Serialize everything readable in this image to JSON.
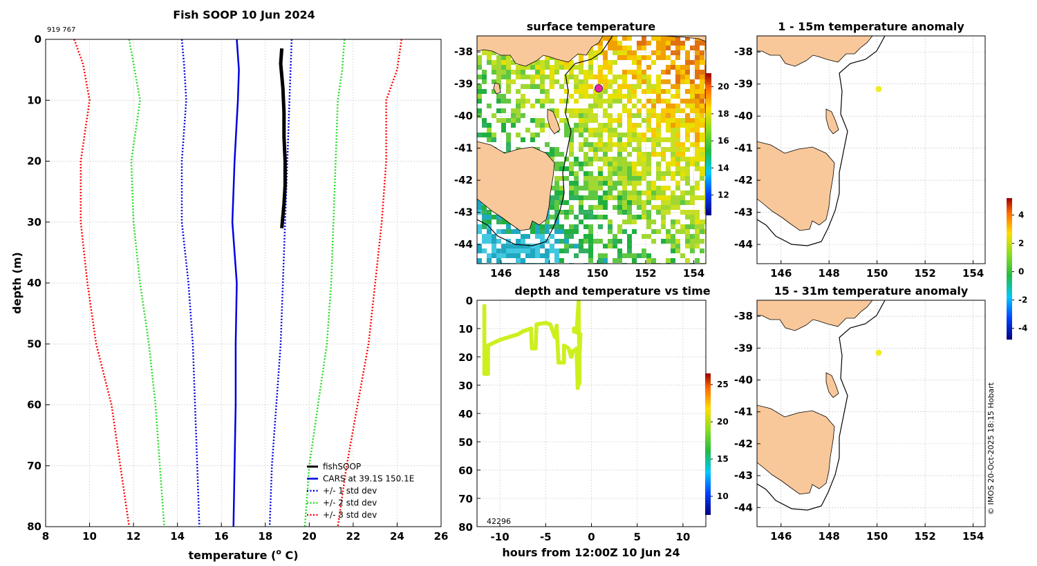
{
  "profile": {
    "title": "Fish SOOP 10 Jun 2024",
    "id_label": "919 767",
    "xlabel_main": "temperature (",
    "xlabel_sup": "o",
    "xlabel_end": " C)",
    "ylabel": "depth (m)",
    "xlim": [
      8,
      26
    ],
    "ylim": [
      0,
      80
    ],
    "xticks": [
      8,
      10,
      12,
      14,
      16,
      18,
      20,
      22,
      24,
      26
    ],
    "yticks": [
      0,
      10,
      20,
      30,
      40,
      50,
      60,
      70,
      80
    ],
    "colors": {
      "fishSOOP": "#000000",
      "cars": "#0000e0",
      "std1": "#0000e0",
      "std2": "#22dd22",
      "std3": "#ff0000"
    },
    "series": [
      {
        "key": "std3_low",
        "style": "std3",
        "points": [
          [
            9.3,
            0
          ],
          [
            9.7,
            4
          ],
          [
            10.0,
            10
          ],
          [
            9.6,
            20
          ],
          [
            9.6,
            30
          ],
          [
            9.9,
            40
          ],
          [
            10.3,
            50
          ],
          [
            11.0,
            60
          ],
          [
            11.4,
            70
          ],
          [
            11.8,
            80
          ]
        ]
      },
      {
        "key": "std2_low",
        "style": "std2",
        "points": [
          [
            11.8,
            0
          ],
          [
            12.0,
            4
          ],
          [
            12.3,
            10
          ],
          [
            11.9,
            20
          ],
          [
            12.0,
            30
          ],
          [
            12.3,
            40
          ],
          [
            12.7,
            50
          ],
          [
            13.0,
            60
          ],
          [
            13.2,
            70
          ],
          [
            13.4,
            80
          ]
        ]
      },
      {
        "key": "std1_low",
        "style": "std1",
        "points": [
          [
            14.2,
            0
          ],
          [
            14.3,
            4
          ],
          [
            14.4,
            10
          ],
          [
            14.2,
            20
          ],
          [
            14.2,
            30
          ],
          [
            14.5,
            40
          ],
          [
            14.7,
            50
          ],
          [
            14.8,
            60
          ],
          [
            14.9,
            70
          ],
          [
            15.0,
            80
          ]
        ]
      },
      {
        "key": "cars_mean",
        "style": "cars",
        "points": [
          [
            16.7,
            0
          ],
          [
            16.8,
            5
          ],
          [
            16.75,
            10
          ],
          [
            16.6,
            20
          ],
          [
            16.5,
            30
          ],
          [
            16.7,
            40
          ],
          [
            16.65,
            50
          ],
          [
            16.65,
            60
          ],
          [
            16.6,
            70
          ],
          [
            16.55,
            80
          ]
        ]
      },
      {
        "key": "std1_high",
        "style": "std1",
        "points": [
          [
            19.2,
            0
          ],
          [
            19.15,
            5
          ],
          [
            19.1,
            10
          ],
          [
            19.0,
            20
          ],
          [
            18.9,
            30
          ],
          [
            18.8,
            40
          ],
          [
            18.7,
            50
          ],
          [
            18.5,
            60
          ],
          [
            18.3,
            70
          ],
          [
            18.2,
            80
          ]
        ]
      },
      {
        "key": "std2_high",
        "style": "std2",
        "points": [
          [
            21.6,
            0
          ],
          [
            21.5,
            5
          ],
          [
            21.3,
            10
          ],
          [
            21.2,
            20
          ],
          [
            21.1,
            30
          ],
          [
            21.0,
            40
          ],
          [
            20.8,
            50
          ],
          [
            20.4,
            60
          ],
          [
            20.0,
            70
          ],
          [
            19.8,
            80
          ]
        ]
      },
      {
        "key": "std3_high",
        "style": "std3",
        "points": [
          [
            24.2,
            0
          ],
          [
            24.0,
            5
          ],
          [
            23.5,
            10
          ],
          [
            23.5,
            20
          ],
          [
            23.3,
            30
          ],
          [
            23.0,
            40
          ],
          [
            22.7,
            50
          ],
          [
            22.2,
            60
          ],
          [
            21.7,
            70
          ],
          [
            21.3,
            80
          ]
        ]
      },
      {
        "key": "fishSOOP",
        "style": "fishSOOP",
        "points": [
          [
            18.75,
            1.5
          ],
          [
            18.7,
            4
          ],
          [
            18.8,
            8
          ],
          [
            18.85,
            12
          ],
          [
            18.85,
            16
          ],
          [
            18.9,
            20
          ],
          [
            18.9,
            24
          ],
          [
            18.85,
            27
          ],
          [
            18.8,
            29
          ],
          [
            18.75,
            31
          ]
        ]
      }
    ],
    "legend": [
      {
        "label": "fishSOOP",
        "style": "fishSOOP"
      },
      {
        "label": "CARS at 39.1S 150.1E",
        "style": "cars"
      },
      {
        "label": "+/- 1 std dev",
        "style": "std1"
      },
      {
        "label": "+/- 2 std dev",
        "style": "std2"
      },
      {
        "label": "+/- 3 std dev",
        "style": "std3"
      }
    ]
  },
  "sst_map": {
    "title": "surface temperature",
    "xticks": [
      146,
      148,
      150,
      152,
      154
    ],
    "yticks": [
      -38,
      -39,
      -40,
      -41,
      -42,
      -43,
      -44
    ],
    "colorbar_ticks": [
      12,
      14,
      16,
      18,
      20
    ],
    "marker_color": "#ee22aa"
  },
  "time_plot": {
    "title": "depth and temperature vs time",
    "xlabel": "hours from 12:00Z 10 Jun 24",
    "xlim": [
      -12.5,
      12.5
    ],
    "ylim": [
      0,
      80
    ],
    "xticks": [
      -10,
      -5,
      0,
      5,
      10
    ],
    "yticks": [
      0,
      10,
      20,
      30,
      40,
      50,
      60,
      70,
      80
    ],
    "annotation": "42296",
    "point_color": "#ccf01e",
    "colorbar_ticks": [
      10,
      15,
      20,
      25
    ],
    "path": [
      [
        -11.7,
        2
      ],
      [
        -11.7,
        26
      ],
      [
        -11.3,
        26
      ],
      [
        -11.3,
        16
      ],
      [
        -11.0,
        15.5
      ],
      [
        -10.0,
        14
      ],
      [
        -9.0,
        13
      ],
      [
        -8.0,
        12
      ],
      [
        -7.5,
        11
      ],
      [
        -6.6,
        10
      ],
      [
        -6.5,
        17
      ],
      [
        -6.1,
        17
      ],
      [
        -6.0,
        8.5
      ],
      [
        -5.0,
        8
      ],
      [
        -4.5,
        8.5
      ],
      [
        -4.0,
        13
      ],
      [
        -3.8,
        9
      ],
      [
        -3.6,
        22
      ],
      [
        -3.0,
        22
      ],
      [
        -3.0,
        16
      ],
      [
        -2.5,
        17
      ],
      [
        -2.2,
        20
      ],
      [
        -2.0,
        18
      ],
      [
        -1.6,
        17
      ],
      [
        -1.6,
        21
      ],
      [
        -1.5,
        31
      ],
      [
        -1.3,
        29
      ],
      [
        -1.3,
        20
      ],
      [
        -1.2,
        12
      ],
      [
        -1.5,
        11.5
      ],
      [
        -1.9,
        11
      ],
      [
        -1.9,
        10
      ],
      [
        -1.6,
        10
      ],
      [
        -1.5,
        5
      ],
      [
        -1.4,
        0.5
      ],
      [
        -1.3,
        29
      ]
    ]
  },
  "anom1": {
    "title": "1 - 15m temperature anomaly",
    "xticks": [
      146,
      148,
      150,
      152,
      154
    ],
    "yticks": [
      -38,
      -39,
      -40,
      -41,
      -42,
      -43,
      -44
    ],
    "marker_color": "#eeee22"
  },
  "anom2": {
    "title": "15 - 31m temperature anomaly",
    "xticks": [
      146,
      148,
      150,
      152,
      154
    ],
    "yticks": [
      -38,
      -39,
      -40,
      -41,
      -42,
      -43,
      -44
    ],
    "marker_color": "#eeee22"
  },
  "anom_colorbar_ticks": [
    4,
    2,
    0,
    -2,
    -4
  ],
  "credit": "© IMOS 20-Oct-2025 18:15 Hobart"
}
